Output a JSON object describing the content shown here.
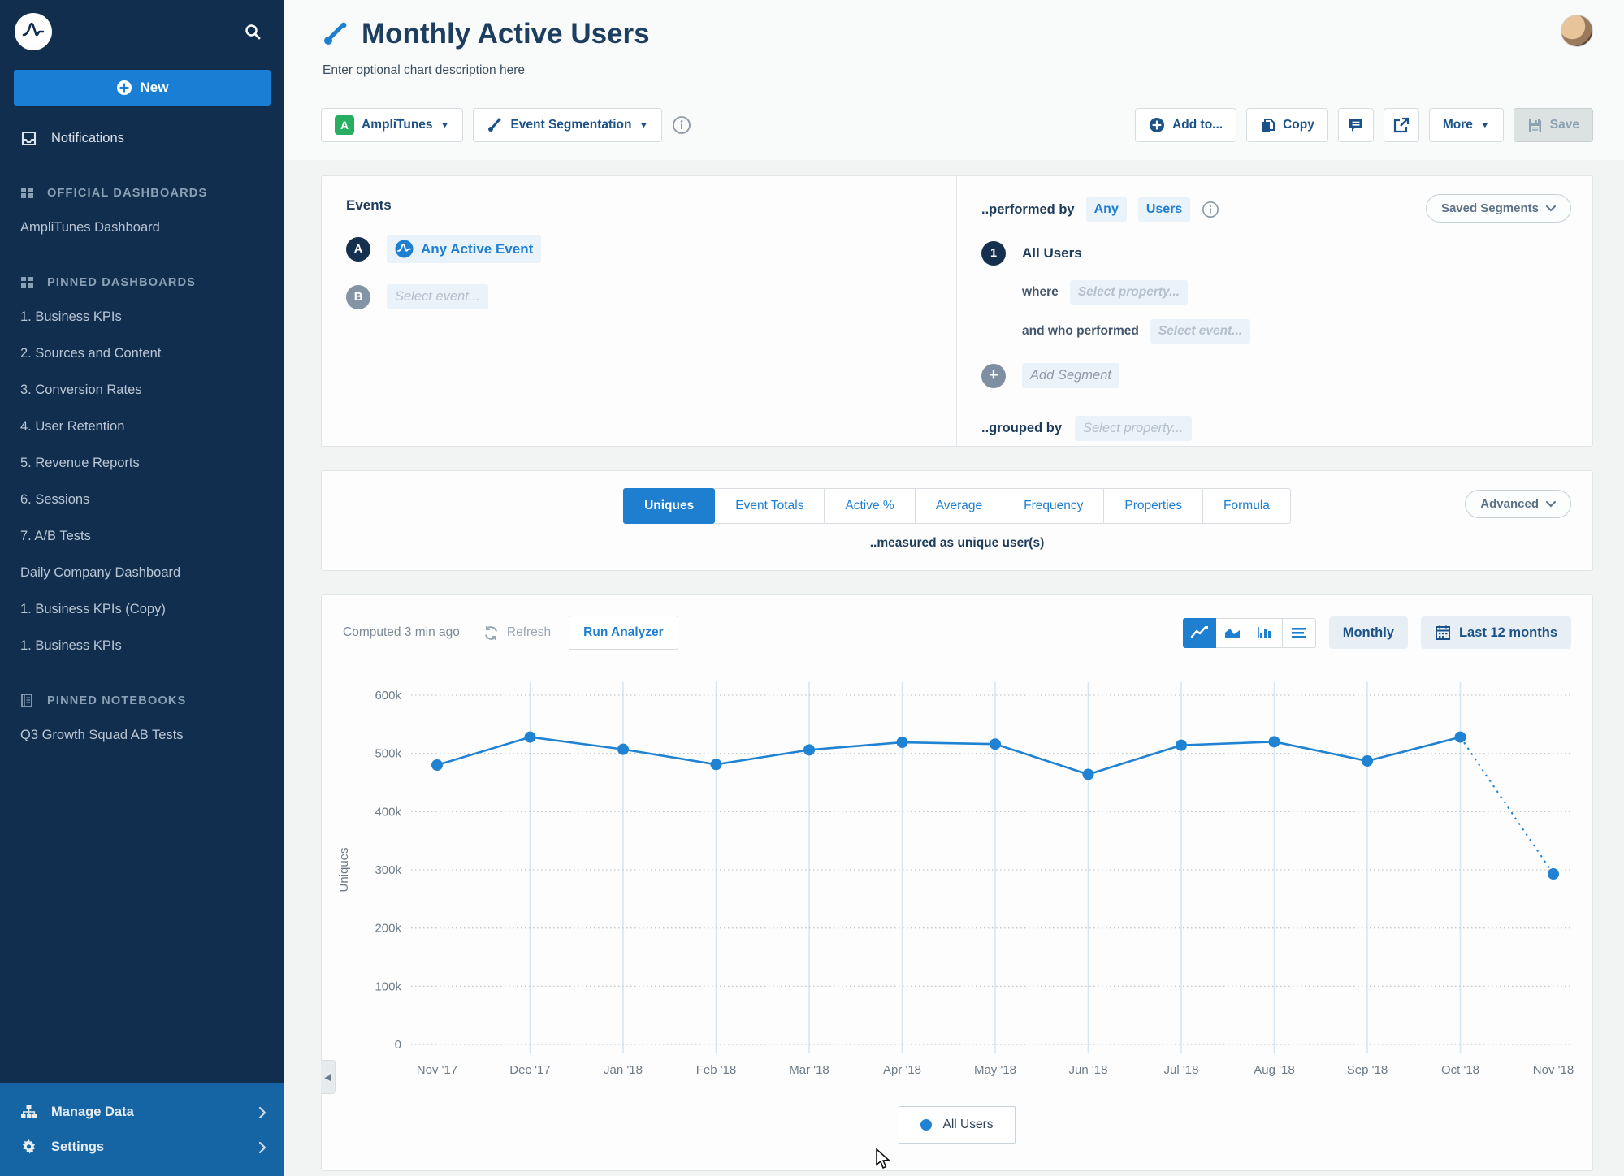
{
  "sidebar": {
    "new_label": "New",
    "notifications": "Notifications",
    "official": {
      "title": "OFFICIAL DASHBOARDS",
      "items": [
        "AmpliTunes Dashboard"
      ]
    },
    "pinned_dashboards": {
      "title": "PINNED DASHBOARDS",
      "items": [
        "1. Business KPIs",
        "2. Sources and Content",
        "3. Conversion Rates",
        "4. User Retention",
        "5. Revenue Reports",
        "6. Sessions",
        "7. A/B Tests",
        "Daily Company Dashboard",
        "1. Business KPIs (Copy)",
        "1. Business KPIs"
      ]
    },
    "pinned_notebooks": {
      "title": "PINNED NOTEBOOKS",
      "items": [
        "Q3 Growth Squad AB Tests"
      ]
    },
    "bottom": {
      "manage_data": "Manage Data",
      "settings": "Settings"
    }
  },
  "header": {
    "title": "Monthly Active Users",
    "description_placeholder": "Enter optional chart description here",
    "project_badge": "A",
    "project": "AmpliTunes",
    "chart_type": "Event Segmentation",
    "actions": {
      "add_to": "Add to...",
      "copy": "Copy",
      "more": "More",
      "save": "Save"
    }
  },
  "definition": {
    "events_title": "Events",
    "event_a_badge": "A",
    "event_a_label": "Any Active Event",
    "event_b_badge": "B",
    "event_b_placeholder": "Select event...",
    "performed_by": "..performed by",
    "any": "Any",
    "users": "Users",
    "saved_segments": "Saved Segments",
    "segment_number": "1",
    "segment_name": "All Users",
    "where_label": "where",
    "where_placeholder": "Select property...",
    "who_label": "and who performed",
    "who_placeholder": "Select event...",
    "add_segment": "Add Segment",
    "grouped_by": "..grouped by",
    "grouped_placeholder": "Select property..."
  },
  "measure": {
    "tabs": [
      "Uniques",
      "Event Totals",
      "Active %",
      "Average",
      "Frequency",
      "Properties",
      "Formula"
    ],
    "active_tab": "Uniques",
    "advanced": "Advanced",
    "measured_as": "..measured as unique user(s)"
  },
  "chart_panel": {
    "computed": "Computed 3 min ago",
    "refresh": "Refresh",
    "run_analyzer": "Run Analyzer",
    "interval": "Monthly",
    "range": "Last 12 months",
    "legend": [
      "All Users"
    ]
  },
  "chart_data": {
    "type": "line",
    "title": "Monthly Active Users",
    "ylabel": "Uniques",
    "categories": [
      "Nov '17",
      "Dec '17",
      "Jan '18",
      "Feb '18",
      "Mar '18",
      "Apr '18",
      "May '18",
      "Jun '18",
      "Jul '18",
      "Aug '18",
      "Sep '18",
      "Oct '18",
      "Nov '18"
    ],
    "series": [
      {
        "name": "All Users",
        "values": [
          480000,
          528000,
          507000,
          481000,
          506000,
          519000,
          516000,
          464000,
          514000,
          520000,
          487000,
          528000,
          293000
        ]
      }
    ],
    "ylim": [
      0,
      600000
    ],
    "yticks": [
      0,
      100000,
      200000,
      300000,
      400000,
      500000,
      600000
    ],
    "ytick_labels": [
      "0",
      "100k",
      "200k",
      "300k",
      "400k",
      "500k",
      "600k"
    ],
    "incomplete_final_segment": true,
    "line_color": "#1f82d2",
    "grid": true,
    "legend_position": "bottom"
  },
  "colors": {
    "accent_blue": "#1e7fd0",
    "navy": "#1d3c5c",
    "sidebar_bg": "#122e4e",
    "sidebar_bottom_bg": "#1564a4",
    "line": "#1f82d2",
    "project_green": "#27ae60"
  }
}
